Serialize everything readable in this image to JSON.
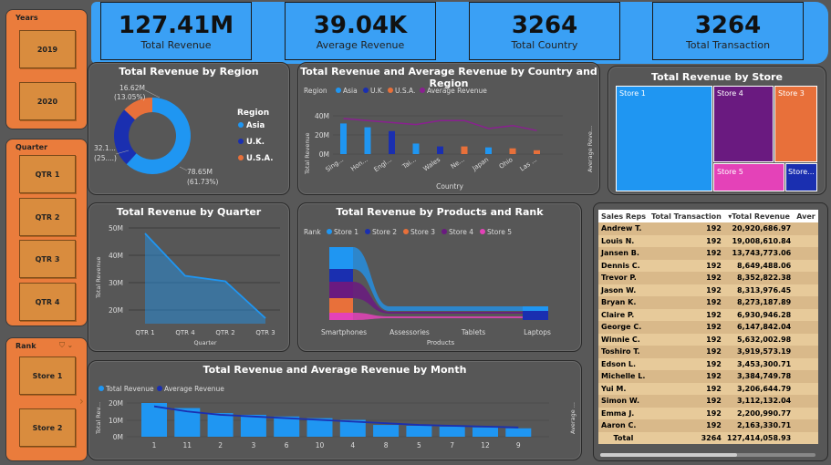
{
  "slicers": {
    "years": {
      "title": "Years",
      "options": [
        "2019",
        "2020"
      ]
    },
    "quarter": {
      "title": "Quarter",
      "options": [
        "QTR 1",
        "QTR 2",
        "QTR 3",
        "QTR 4"
      ]
    },
    "rank": {
      "title": "Rank",
      "options": [
        "Store 1",
        "Store 2"
      ]
    }
  },
  "kpis": [
    {
      "value": "127.41M",
      "label": "Total Revenue"
    },
    {
      "value": "39.04K",
      "label": "Average Revenue"
    },
    {
      "value": "3264",
      "label": "Total Country"
    },
    {
      "value": "3264",
      "label": "Total Transaction"
    }
  ],
  "colors": {
    "store1": "#1f96f2",
    "store2": "#1a2fb0",
    "store3": "#e8703a",
    "store4": "#6a1a80",
    "store5": "#e442b8",
    "purple": "#8a2090"
  },
  "region_chart": {
    "title": "Total Revenue by Region",
    "legend_title": "Region",
    "legend": [
      "Asia",
      "U.K.",
      "U.S.A."
    ],
    "chart_data": {
      "type": "pie",
      "categories": [
        "Asia",
        "U.K.",
        "U.S.A."
      ],
      "values": [
        78.65,
        32.1,
        16.62
      ],
      "labels": [
        "78.65M",
        "32.1...",
        "16.62M"
      ],
      "pcts": [
        "(61.73%)",
        "(25....)",
        "(13.05%)"
      ]
    }
  },
  "country_chart": {
    "title": "Total Revenue and Average Revenue by Country and Region",
    "legend_title": "Region",
    "legend": [
      "Asia",
      "U.K.",
      "U.S.A.",
      "Average Revenue"
    ],
    "xlabel": "Country",
    "ylabel": "Total Revenue",
    "y2label": "Average Reve...",
    "yticks": [
      "40M",
      "20M",
      "0M"
    ],
    "chart_data": {
      "type": "bar",
      "categories": [
        "Sing...",
        "Hon...",
        "Engl...",
        "Tai...",
        "Wales",
        "Ne...",
        "Japan",
        "Ohio",
        "Las ..."
      ],
      "regions": [
        "Asia",
        "Asia",
        "U.K.",
        "Asia",
        "U.K.",
        "U.S.A.",
        "Asia",
        "U.S.A.",
        "U.S.A."
      ],
      "values": [
        32,
        28,
        24,
        11,
        8,
        8,
        7,
        6,
        4
      ],
      "avg": [
        40,
        38,
        36,
        34,
        38,
        38,
        30,
        33,
        28
      ]
    }
  },
  "store_chart": {
    "title": "Total Revenue by Store",
    "stores": [
      "Store 1",
      "Store 4",
      "Store 3",
      "Store 5",
      "Store..."
    ]
  },
  "quarter_chart": {
    "title": "Total Revenue by Quarter",
    "xlabel": "Quarter",
    "ylabel": "Total Revenue",
    "yticks": [
      "50M",
      "40M",
      "30M",
      "20M"
    ],
    "chart_data": {
      "type": "area",
      "categories": [
        "QTR 1",
        "QTR 4",
        "QTR 2",
        "QTR 3"
      ],
      "values": [
        48,
        32.5,
        30.5,
        17
      ],
      "ylim": [
        15,
        50
      ]
    }
  },
  "products_chart": {
    "title": "Total Revenue by Products and Rank",
    "legend_title": "Rank",
    "legend": [
      "Store 1",
      "Store 2",
      "Store 3",
      "Store 4",
      "Store 5"
    ],
    "xlabel": "Products",
    "categories": [
      "Smartphones",
      "Assessories",
      "Tablets",
      "Laptops"
    ]
  },
  "month_chart": {
    "title": "Total Revenue and Average Revenue by Month",
    "legend": [
      "Total Revenue",
      "Average Revenue"
    ],
    "ylabel": "Total Rev...",
    "y2label": "Average ...",
    "yticks": [
      "20M",
      "10M",
      "0M"
    ],
    "chart_data": {
      "type": "bar",
      "categories": [
        "1",
        "11",
        "2",
        "3",
        "6",
        "10",
        "4",
        "8",
        "5",
        "7",
        "12",
        "9"
      ],
      "values": [
        20,
        17,
        14,
        13,
        12,
        11,
        10,
        7,
        6.5,
        6,
        5.5,
        5
      ],
      "avg": [
        18,
        15,
        13,
        12,
        11,
        10,
        9,
        8,
        7,
        6.5,
        6,
        5.5
      ]
    }
  },
  "table": {
    "headers": [
      "Sales Reps",
      "Total Transaction",
      "Total Revenue",
      "Aver"
    ],
    "rows": [
      [
        "Andrew T.",
        "192",
        "20,920,686.97"
      ],
      [
        "Louis N.",
        "192",
        "19,008,610.84"
      ],
      [
        "Jansen B.",
        "192",
        "13,743,773.06"
      ],
      [
        "Dennis C.",
        "192",
        "8,649,488.06"
      ],
      [
        "Trevor P.",
        "192",
        "8,352,822.38"
      ],
      [
        "Jason W.",
        "192",
        "8,313,976.45"
      ],
      [
        "Bryan K.",
        "192",
        "8,273,187.89"
      ],
      [
        "Claire P.",
        "192",
        "6,930,946.28"
      ],
      [
        "George C.",
        "192",
        "6,147,842.04"
      ],
      [
        "Winnie C.",
        "192",
        "5,632,002.98"
      ],
      [
        "Toshiro T.",
        "192",
        "3,919,573.19"
      ],
      [
        "Edson L.",
        "192",
        "3,453,300.71"
      ],
      [
        "Michelle L.",
        "192",
        "3,384,749.78"
      ],
      [
        "Yui M.",
        "192",
        "3,206,644.79"
      ],
      [
        "Simon W.",
        "192",
        "3,112,132.04"
      ],
      [
        "Emma J.",
        "192",
        "2,200,990.77"
      ],
      [
        "Aaron C.",
        "192",
        "2,163,330.71"
      ]
    ],
    "total": [
      "Total",
      "3264",
      "127,414,058.93"
    ]
  }
}
